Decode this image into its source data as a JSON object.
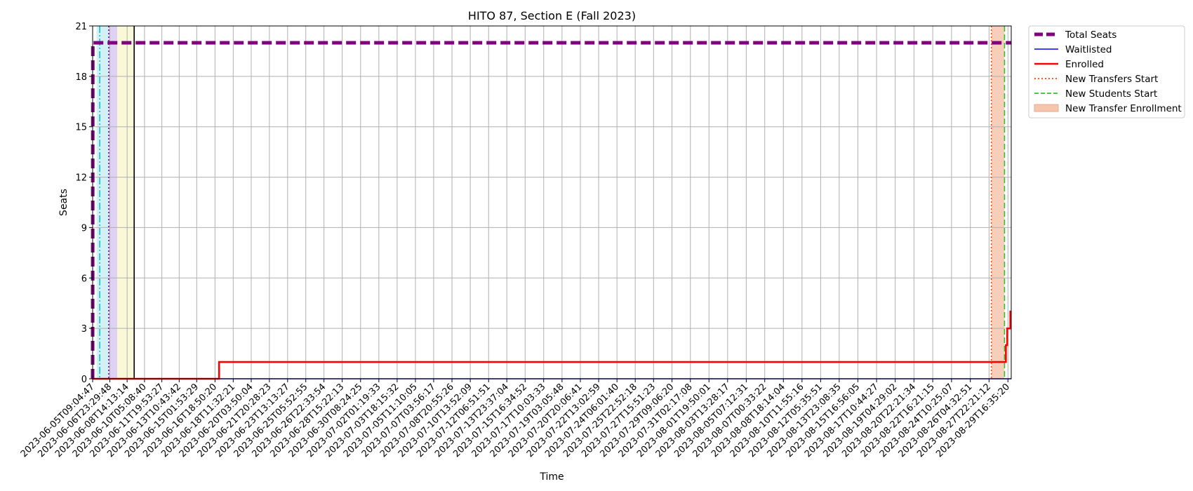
{
  "chart_data": {
    "type": "line",
    "title": "HITO 87, Section E (Fall 2023)",
    "xlabel": "Time",
    "ylabel": "Seats",
    "ylim": [
      0,
      21
    ],
    "yticks": [
      0,
      3,
      6,
      9,
      12,
      15,
      18,
      21
    ],
    "grid": true,
    "legend_position": "outside-top-right",
    "x_range": [
      "2023-06-05T09:04:47",
      "2023-08-30T00:00:00"
    ],
    "xticks": [
      "2023-06-05T09:04:47",
      "2023-06-06T23:29:48",
      "2023-06-08T14:13:14",
      "2023-06-10T05:08:40",
      "2023-06-11T19:53:27",
      "2023-06-13T10:43:42",
      "2023-06-15T01:53:29",
      "2023-06-16T18:50:20",
      "2023-06-18T11:32:21",
      "2023-06-20T03:50:04",
      "2023-06-21T20:28:23",
      "2023-06-23T13:13:27",
      "2023-06-25T05:52:55",
      "2023-06-26T22:33:54",
      "2023-06-28T15:22:13",
      "2023-06-30T08:24:25",
      "2023-07-02T01:19:33",
      "2023-07-03T18:15:32",
      "2023-07-05T11:10:05",
      "2023-07-07T03:56:17",
      "2023-07-08T20:55:26",
      "2023-07-10T13:52:09",
      "2023-07-12T06:51:51",
      "2023-07-13T23:37:04",
      "2023-07-15T16:34:52",
      "2023-07-17T10:03:33",
      "2023-07-19T03:05:48",
      "2023-07-20T20:06:41",
      "2023-07-22T13:02:59",
      "2023-07-24T06:01:40",
      "2023-07-25T22:52:18",
      "2023-07-27T15:51:23",
      "2023-07-29T09:06:20",
      "2023-07-31T02:17:08",
      "2023-08-01T19:50:01",
      "2023-08-03T13:28:17",
      "2023-08-05T07:12:31",
      "2023-08-07T00:33:22",
      "2023-08-08T18:14:04",
      "2023-08-10T11:55:16",
      "2023-08-12T05:35:51",
      "2023-08-13T23:08:35",
      "2023-08-15T16:56:05",
      "2023-08-17T10:44:27",
      "2023-08-19T04:29:02",
      "2023-08-20T22:21:34",
      "2023-08-22T16:21:15",
      "2023-08-24T10:25:07",
      "2023-08-26T04:32:51",
      "2023-08-27T22:21:12",
      "2023-08-29T16:35:20"
    ],
    "series": [
      {
        "name": "Total Seats",
        "color": "#800080",
        "style": "dashed-thick",
        "points": [
          [
            "2023-06-05T09:04:47",
            0
          ],
          [
            "2023-06-05T09:30:00",
            20
          ],
          [
            "2023-08-30T00:00:00",
            20
          ]
        ]
      },
      {
        "name": "Waitlisted",
        "color": "#0000ff",
        "style": "solid-thin",
        "points": [
          [
            "2023-06-05T09:04:47",
            0
          ],
          [
            "2023-08-30T00:00:00",
            0
          ]
        ]
      },
      {
        "name": "Enrolled",
        "color": "#ff0000",
        "style": "solid-thick",
        "points": [
          [
            "2023-06-05T09:04:47",
            0
          ],
          [
            "2023-06-17T04:00:00",
            0
          ],
          [
            "2023-06-17T04:00:00",
            1
          ],
          [
            "2023-08-29T12:00:00",
            1
          ],
          [
            "2023-08-29T12:00:00",
            2
          ],
          [
            "2023-08-29T15:00:00",
            2
          ],
          [
            "2023-08-29T15:00:00",
            3
          ],
          [
            "2023-08-29T22:00:00",
            3
          ],
          [
            "2023-08-29T22:00:00",
            4
          ],
          [
            "2023-08-30T00:00:00",
            4
          ]
        ]
      }
    ],
    "vlines": [
      {
        "name": "New Transfers Start",
        "x": "2023-08-28T03:30:00",
        "color": "#ff4500",
        "style": "dotted"
      },
      {
        "name": "New Students Start",
        "x": "2023-08-29T09:00:00",
        "color": "#2ec02e",
        "style": "dashed"
      },
      {
        "name": "",
        "x": "2023-06-06T01:00:00",
        "color": "#17becf",
        "style": "dashdot"
      },
      {
        "name": "",
        "x": "2023-06-06T21:00:00",
        "color": "#6a0dad",
        "style": "dotted"
      },
      {
        "name": "",
        "x": "2023-06-09T06:00:00",
        "color": "#000000",
        "style": "solid"
      }
    ],
    "spans": [
      {
        "name": "New Transfer Enrollment",
        "x0": "2023-08-28T03:30:00",
        "x1": "2023-08-29T09:00:00",
        "color": "#f5c6ae"
      },
      {
        "name": "",
        "x0": "2023-06-05T18:00:00",
        "x1": "2023-06-06T21:00:00",
        "color": "#c9eef2"
      },
      {
        "name": "",
        "x0": "2023-06-06T21:00:00",
        "x1": "2023-06-07T16:00:00",
        "color": "#d8c9f2"
      },
      {
        "name": "",
        "x0": "2023-06-07T16:00:00",
        "x1": "2023-06-09T06:00:00",
        "color": "#f8f8d0"
      }
    ],
    "legend": [
      {
        "label": "Total Seats",
        "color": "#800080",
        "kind": "thickdash"
      },
      {
        "label": "Waitlisted",
        "color": "#0000ff",
        "kind": "line"
      },
      {
        "label": "Enrolled",
        "color": "#ff0000",
        "kind": "thickline"
      },
      {
        "label": "New Transfers Start",
        "color": "#ff4500",
        "kind": "dotted"
      },
      {
        "label": "New Students Start",
        "color": "#2ec02e",
        "kind": "dashed"
      },
      {
        "label": "New Transfer Enrollment",
        "color": "#f5c6ae",
        "kind": "patch"
      }
    ]
  }
}
